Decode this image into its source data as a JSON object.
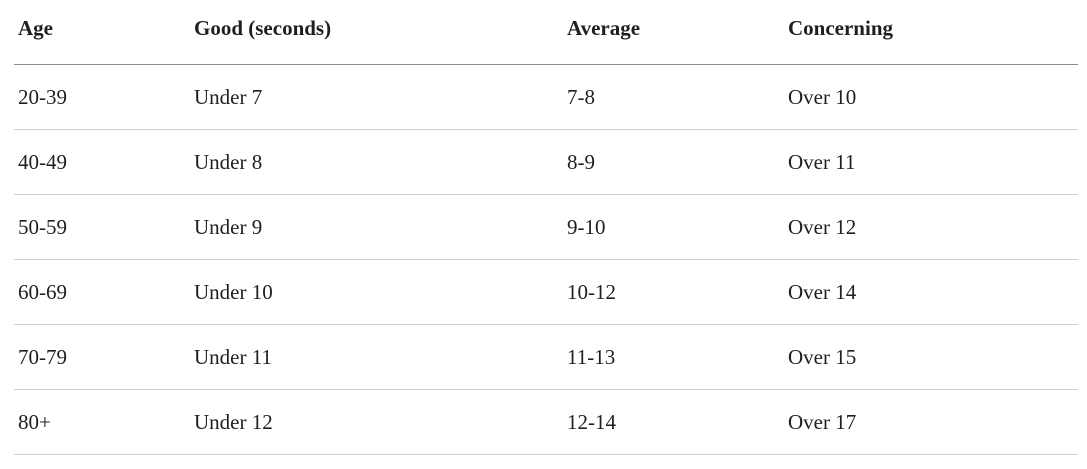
{
  "table": {
    "header": [
      "Age",
      "Good (seconds)",
      "Average",
      "Concerning"
    ],
    "rows": [
      [
        "20-39",
        "Under 7",
        "7-8",
        "Over 10"
      ],
      [
        "40-49",
        "Under 8",
        "8-9",
        "Over 11"
      ],
      [
        "50-59",
        "Under 9",
        "9-10",
        "Over 12"
      ],
      [
        "60-69",
        "Under 10",
        "10-12",
        "Over 14"
      ],
      [
        "70-79",
        "Under 11",
        "11-13",
        "Over 15"
      ],
      [
        "80+",
        "Under 12",
        "12-14",
        "Over 17"
      ]
    ]
  }
}
